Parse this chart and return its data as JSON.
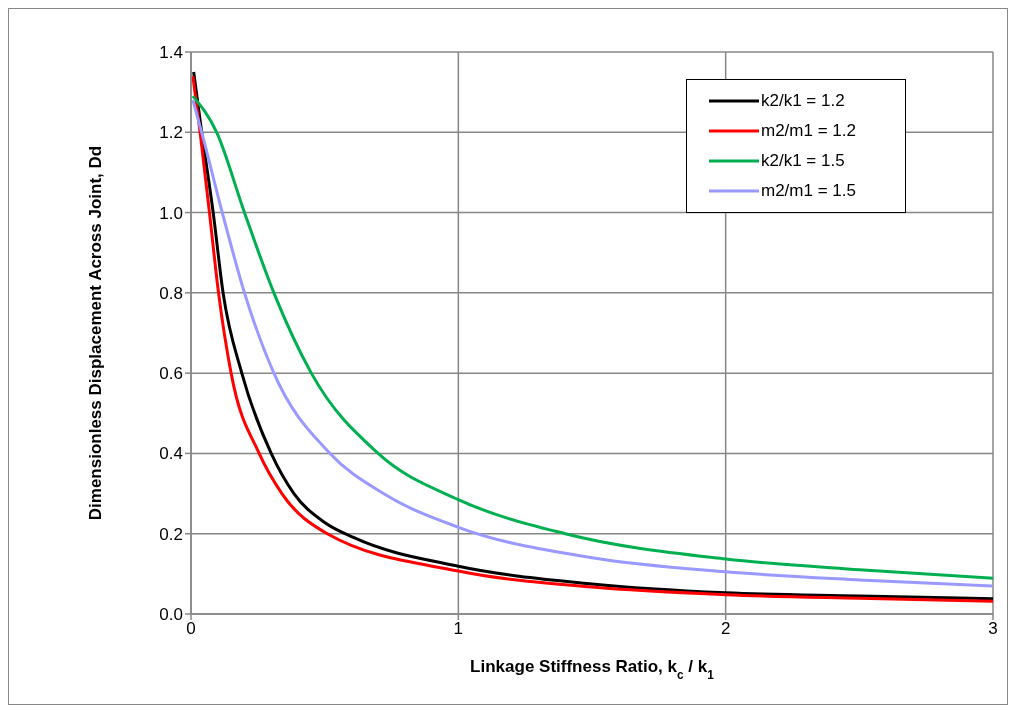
{
  "chart_data": {
    "type": "line",
    "xlabel": "Linkage Stiffness Ratio, k$_{c}$ / k$_{1}$",
    "ylabel": "Dimensionless Displacement Across Joint, Dd",
    "xlim": [
      0,
      3
    ],
    "xticks": [
      0,
      1,
      2,
      3
    ],
    "ylim": [
      0,
      1.4
    ],
    "yticks": [
      {
        "value": 0,
        "label": "0.0"
      },
      {
        "value": 0.2,
        "label": "0.2"
      },
      {
        "value": 0.4,
        "label": "0.4"
      },
      {
        "value": 0.6,
        "label": "0.6"
      },
      {
        "value": 0.8,
        "label": "0.8"
      },
      {
        "value": 1,
        "label": "1.0"
      },
      {
        "value": 1.2,
        "label": "1.2"
      },
      {
        "value": 1.4,
        "label": "1.4"
      }
    ],
    "grid": true,
    "legend": "top right",
    "marker": "none",
    "line_style": "solid",
    "series": [
      {
        "name": "k2/k1 = 1.2",
        "color": "#000000",
        "x": [
          0.01,
          0.04,
          0.083,
          0.12,
          0.19,
          0.3,
          0.385,
          0.5,
          0.61,
          1,
          1.5,
          2,
          2.5,
          3
        ],
        "values": [
          1.35,
          1.2,
          1,
          0.8,
          0.6,
          0.4,
          0.3,
          0.228,
          0.19,
          0.119,
          0.075,
          0.053,
          0.045,
          0.038
        ]
      },
      {
        "name": "m2/m1 = 1.2",
        "color": "#ff0000",
        "x": [
          0.007,
          0.034,
          0.069,
          0.103,
          0.15,
          0.255,
          0.34,
          0.51,
          1,
          1.5,
          2,
          2.5,
          3
        ],
        "values": [
          1.34,
          1.2,
          1,
          0.8,
          0.6,
          0.4,
          0.3,
          0.2,
          0.107,
          0.067,
          0.048,
          0.039,
          0.032
        ]
      },
      {
        "name": "k2/k1 = 1.5",
        "color": "#00b050",
        "x": [
          0.007,
          0.096,
          0.2,
          0.31,
          0.45,
          0.7,
          1,
          1.4,
          2,
          2.5,
          3
        ],
        "values": [
          1.29,
          1.2,
          1,
          0.8,
          0.6,
          0.4,
          0.285,
          0.2,
          0.137,
          0.11,
          0.089
        ]
      },
      {
        "name": "m2/m1 = 1.5",
        "color": "#9999ff",
        "x": [
          0.007,
          0.04,
          0.117,
          0.2,
          0.31,
          0.52,
          0.72,
          1,
          1.5,
          2,
          2.5,
          3
        ],
        "values": [
          1.28,
          1.2,
          1,
          0.8,
          0.6,
          0.4,
          0.3,
          0.216,
          0.14,
          0.105,
          0.085,
          0.07
        ]
      }
    ]
  }
}
